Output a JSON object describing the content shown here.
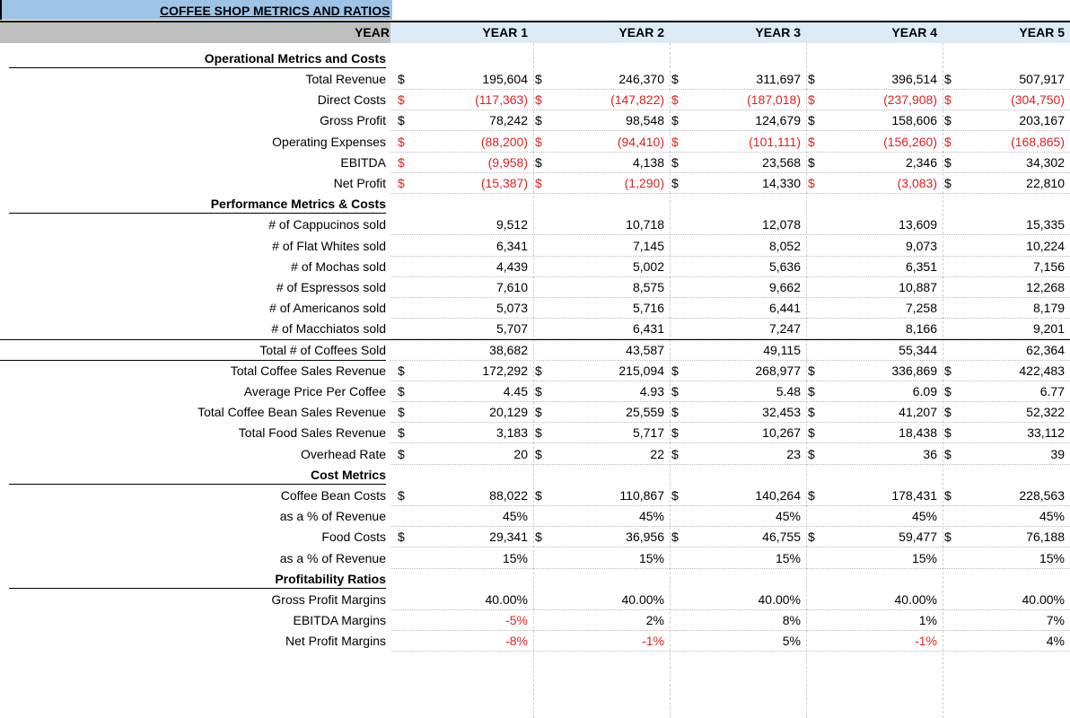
{
  "sheet": {
    "title": "COFFEE SHOP METRICS AND RATIOS",
    "header": [
      "YEAR",
      "YEAR 1",
      "YEAR 2",
      "YEAR 3",
      "YEAR 4",
      "YEAR 5"
    ],
    "sections": [
      {
        "title": "Operational Metrics and Costs",
        "rows": [
          {
            "label": "Total Revenue",
            "unit": "$",
            "values": [
              "195,604",
              "246,370",
              "311,697",
              "396,514",
              "507,917"
            ]
          },
          {
            "label": "Direct Costs",
            "unit": "$",
            "values": [
              "(117,363)",
              "(147,822)",
              "(187,018)",
              "(237,908)",
              "(304,750)"
            ]
          },
          {
            "label": "Gross Profit",
            "unit": "$",
            "values": [
              "78,242",
              "98,548",
              "124,679",
              "158,606",
              "203,167"
            ]
          },
          {
            "label": "Operating Expenses",
            "unit": "$",
            "values": [
              "(88,200)",
              "(94,410)",
              "(101,111)",
              "(156,260)",
              "(168,865)"
            ]
          },
          {
            "label": "EBITDA",
            "unit": "$",
            "values": [
              "(9,958)",
              "4,138",
              "23,568",
              "2,346",
              "34,302"
            ]
          },
          {
            "label": "Net Profit",
            "unit": "$",
            "values": [
              "(15,387)",
              "(1,290)",
              "14,330",
              "(3,083)",
              "22,810"
            ]
          }
        ]
      },
      {
        "title": "Performance Metrics & Costs",
        "rows": [
          {
            "label": "# of Cappucinos sold",
            "values": [
              "9,512",
              "10,718",
              "12,078",
              "13,609",
              "15,335"
            ]
          },
          {
            "label": "# of Flat Whites sold",
            "values": [
              "6,341",
              "7,145",
              "8,052",
              "9,073",
              "10,224"
            ]
          },
          {
            "label": "# of Mochas sold",
            "values": [
              "4,439",
              "5,002",
              "5,636",
              "6,351",
              "7,156"
            ]
          },
          {
            "label": "# of Espressos sold",
            "values": [
              "7,610",
              "8,575",
              "9,662",
              "10,887",
              "12,268"
            ]
          },
          {
            "label": "# of Americanos sold",
            "values": [
              "5,073",
              "5,716",
              "6,441",
              "7,258",
              "8,179"
            ]
          },
          {
            "label": "# of Macchiatos sold",
            "values": [
              "5,707",
              "6,431",
              "7,247",
              "8,166",
              "9,201"
            ]
          },
          {
            "label": "Total # of Coffees Sold",
            "border": true,
            "values": [
              "38,682",
              "43,587",
              "49,115",
              "55,344",
              "62,364"
            ]
          },
          {
            "label": "Total Coffee Sales Revenue",
            "unit": "$",
            "values": [
              "172,292",
              "215,094",
              "268,977",
              "336,869",
              "422,483"
            ]
          },
          {
            "label": "Average Price Per Coffee",
            "unit": "$",
            "values": [
              "4.45",
              "4.93",
              "5.48",
              "6.09",
              "6.77"
            ]
          },
          {
            "label": "Total Coffee Bean Sales Revenue",
            "unit": "$",
            "values": [
              "20,129",
              "25,559",
              "32,453",
              "41,207",
              "52,322"
            ]
          },
          {
            "label": "Total Food Sales Revenue",
            "unit": "$",
            "values": [
              "3,183",
              "5,717",
              "10,267",
              "18,438",
              "33,112"
            ]
          },
          {
            "label": "Overhead Rate",
            "unit": "$",
            "values": [
              "20",
              "22",
              "23",
              "36",
              "39"
            ]
          }
        ]
      },
      {
        "title": "Cost Metrics",
        "rows": [
          {
            "label": "Coffee Bean Costs",
            "unit": "$",
            "values": [
              "88,022",
              "110,867",
              "140,264",
              "178,431",
              "228,563"
            ]
          },
          {
            "label": "as a % of Revenue",
            "values": [
              "45%",
              "45%",
              "45%",
              "45%",
              "45%"
            ]
          },
          {
            "label": "Food Costs",
            "unit": "$",
            "values": [
              "29,341",
              "36,956",
              "46,755",
              "59,477",
              "76,188"
            ]
          },
          {
            "label": "as a % of Revenue",
            "values": [
              "15%",
              "15%",
              "15%",
              "15%",
              "15%"
            ]
          }
        ]
      },
      {
        "title": "Profitability Ratios",
        "rows": [
          {
            "label": "Gross Profit Margins",
            "values": [
              "40.00%",
              "40.00%",
              "40.00%",
              "40.00%",
              "40.00%"
            ]
          },
          {
            "label": "EBITDA Margins",
            "values": [
              "-5%",
              "2%",
              "8%",
              "1%",
              "7%"
            ]
          },
          {
            "label": "Net Profit Margins",
            "values": [
              "-8%",
              "-1%",
              "5%",
              "-1%",
              "4%"
            ]
          }
        ]
      }
    ]
  }
}
